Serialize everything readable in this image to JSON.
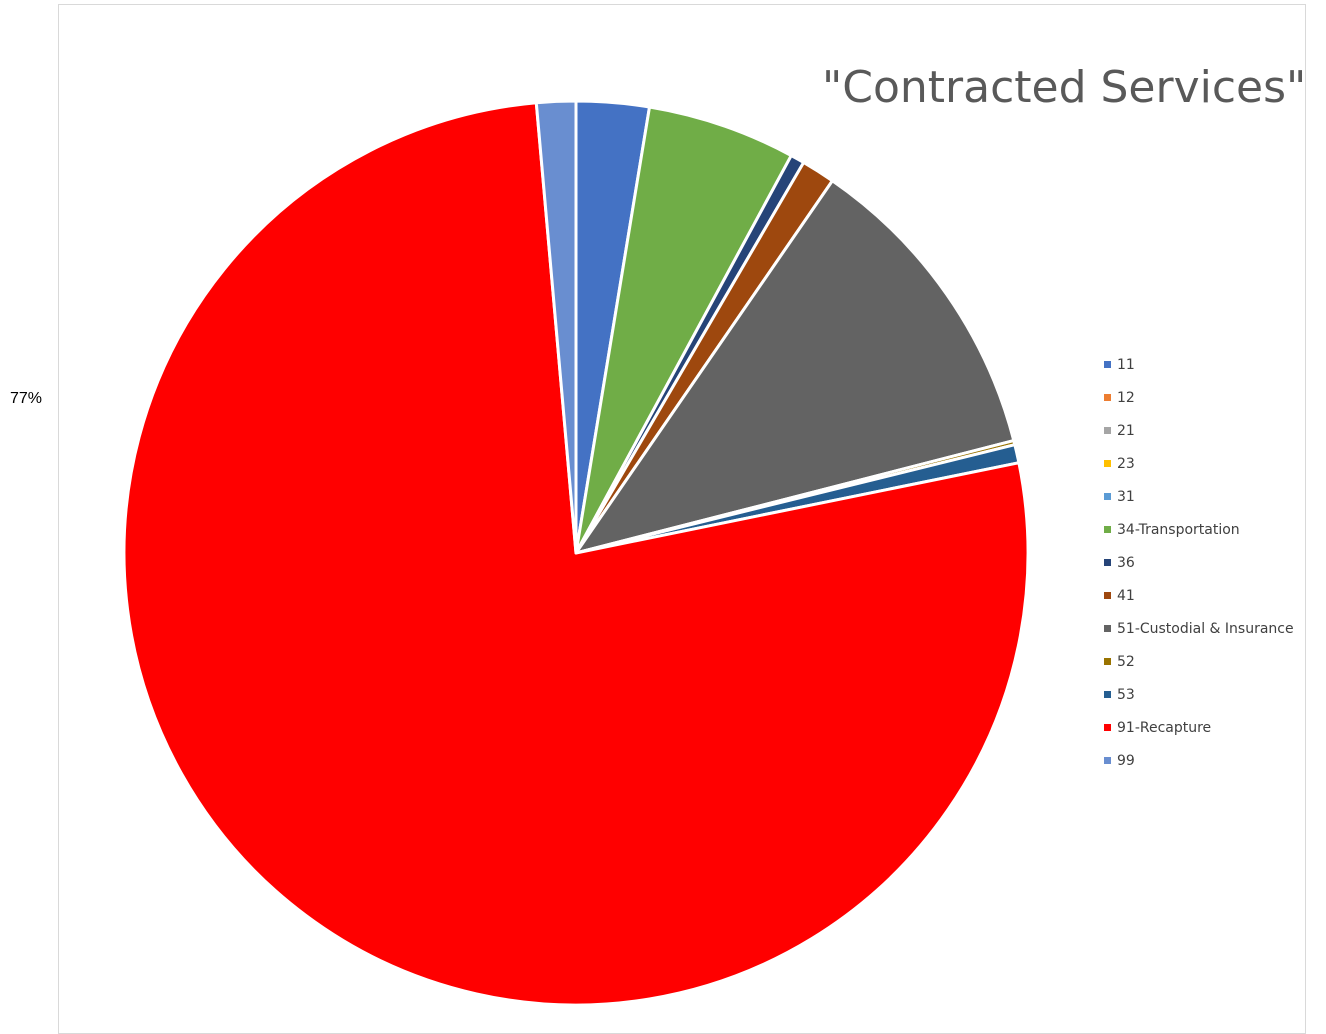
{
  "chart_data": {
    "type": "pie",
    "title": "\"Contracted Services\"",
    "slices": [
      {
        "name": "11",
        "percent": 2.6,
        "color": "#4472C4"
      },
      {
        "name": "12",
        "percent": 0.0,
        "color": "#ED7D31"
      },
      {
        "name": "21",
        "percent": 0.0,
        "color": "#A5A5A5"
      },
      {
        "name": "23",
        "percent": 0.0,
        "color": "#FFC000"
      },
      {
        "name": "31",
        "percent": 0.0,
        "color": "#5B9BD5"
      },
      {
        "name": "34-Transportation",
        "percent": 5.3,
        "color": "#70AD47"
      },
      {
        "name": "36",
        "percent": 0.5,
        "color": "#264478"
      },
      {
        "name": "41",
        "percent": 1.2,
        "color": "#9E480E"
      },
      {
        "name": "51-Custodial & Insurance",
        "percent": 11.4,
        "color": "#636363"
      },
      {
        "name": "52",
        "percent": 0.15,
        "color": "#997300"
      },
      {
        "name": "53",
        "percent": 0.65,
        "color": "#255E91"
      },
      {
        "name": "91-Recapture",
        "percent": 76.8,
        "color": "#FF0000"
      },
      {
        "name": "99",
        "percent": 1.4,
        "color": "#698ED0"
      }
    ],
    "data_labels": [
      {
        "series": "91-Recapture",
        "text": "77%"
      }
    ],
    "legend_position": "right"
  }
}
